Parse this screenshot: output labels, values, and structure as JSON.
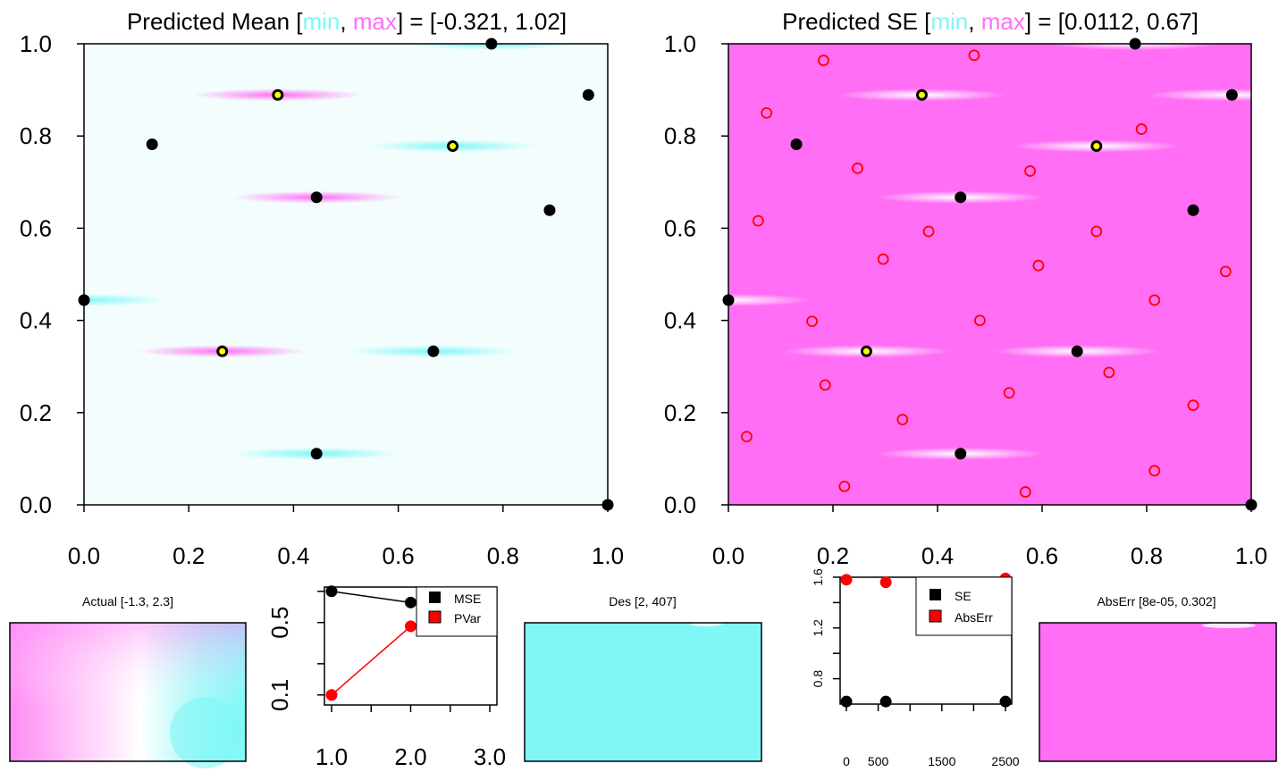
{
  "palette": {
    "cyan": "#7ff7f7",
    "magenta": "#ff6ef5",
    "yellow": "#ffff00",
    "red": "#ff0000",
    "black": "#000000"
  },
  "chart_data": [
    {
      "type": "heatmap",
      "title": {
        "pre": "Predicted Mean [",
        "min": "min",
        "sep": ", ",
        "max": "max",
        "post": "] = [-0.321, 1.02]"
      },
      "xlim": [
        0,
        1
      ],
      "ylim": [
        0,
        1
      ],
      "xticks": [
        "0.0",
        "0.2",
        "0.4",
        "0.6",
        "0.8",
        "1.0"
      ],
      "yticks": [
        "0.0",
        "0.2",
        "0.4",
        "0.6",
        "0.8",
        "1.0"
      ],
      "background_color": "#f3fdfd",
      "design_points": [
        {
          "x": 0.0,
          "y": 0.444,
          "halo": "cyan"
        },
        {
          "x": 0.13,
          "y": 0.782
        },
        {
          "x": 0.264,
          "y": 0.333,
          "yellow": true,
          "halo": "magenta"
        },
        {
          "x": 0.37,
          "y": 0.889,
          "yellow": true,
          "halo": "magenta"
        },
        {
          "x": 0.444,
          "y": 0.667,
          "halo": "magenta"
        },
        {
          "x": 0.444,
          "y": 0.111,
          "halo": "cyan"
        },
        {
          "x": 0.667,
          "y": 0.333,
          "halo": "cyan"
        },
        {
          "x": 0.704,
          "y": 0.778,
          "yellow": true,
          "halo": "cyan"
        },
        {
          "x": 0.778,
          "y": 1.0,
          "halo": "cyan"
        },
        {
          "x": 0.889,
          "y": 0.639
        },
        {
          "x": 0.963,
          "y": 0.889
        },
        {
          "x": 1.0,
          "y": 0.0
        }
      ]
    },
    {
      "type": "heatmap",
      "title": {
        "pre": "Predicted SE [",
        "min": "min",
        "sep": ", ",
        "max": "max",
        "post": "] = [0.0112, 0.67]"
      },
      "xlim": [
        0,
        1
      ],
      "ylim": [
        0,
        1
      ],
      "xticks": [
        "0.0",
        "0.2",
        "0.4",
        "0.6",
        "0.8",
        "1.0"
      ],
      "yticks": [
        "0.0",
        "0.2",
        "0.4",
        "0.6",
        "0.8",
        "1.0"
      ],
      "background_color": "#ff6ef5",
      "design_points": [
        {
          "x": 0.0,
          "y": 0.444,
          "halo": "white"
        },
        {
          "x": 0.13,
          "y": 0.782
        },
        {
          "x": 0.264,
          "y": 0.333,
          "yellow": true,
          "halo": "white"
        },
        {
          "x": 0.37,
          "y": 0.889,
          "yellow": true,
          "halo": "white"
        },
        {
          "x": 0.444,
          "y": 0.667,
          "halo": "white"
        },
        {
          "x": 0.444,
          "y": 0.111,
          "halo": "white"
        },
        {
          "x": 0.667,
          "y": 0.333,
          "halo": "white"
        },
        {
          "x": 0.704,
          "y": 0.778,
          "yellow": true,
          "halo": "white"
        },
        {
          "x": 0.778,
          "y": 1.0,
          "halo": "white"
        },
        {
          "x": 0.889,
          "y": 0.639
        },
        {
          "x": 0.963,
          "y": 0.889,
          "halo": "white"
        },
        {
          "x": 1.0,
          "y": 0.0
        }
      ],
      "candidate_points": [
        {
          "x": 0.182,
          "y": 0.964
        },
        {
          "x": 0.47,
          "y": 0.975
        },
        {
          "x": 0.073,
          "y": 0.85
        },
        {
          "x": 0.79,
          "y": 0.815
        },
        {
          "x": 0.247,
          "y": 0.73
        },
        {
          "x": 0.577,
          "y": 0.724
        },
        {
          "x": 0.057,
          "y": 0.616
        },
        {
          "x": 0.383,
          "y": 0.593
        },
        {
          "x": 0.704,
          "y": 0.593
        },
        {
          "x": 0.296,
          "y": 0.533
        },
        {
          "x": 0.593,
          "y": 0.519
        },
        {
          "x": 0.951,
          "y": 0.506
        },
        {
          "x": 0.815,
          "y": 0.444
        },
        {
          "x": 0.16,
          "y": 0.398
        },
        {
          "x": 0.481,
          "y": 0.4
        },
        {
          "x": 0.728,
          "y": 0.287
        },
        {
          "x": 0.185,
          "y": 0.26
        },
        {
          "x": 0.537,
          "y": 0.243
        },
        {
          "x": 0.889,
          "y": 0.216
        },
        {
          "x": 0.333,
          "y": 0.185
        },
        {
          "x": 0.035,
          "y": 0.148
        },
        {
          "x": 0.815,
          "y": 0.074
        },
        {
          "x": 0.222,
          "y": 0.04
        },
        {
          "x": 0.568,
          "y": 0.028
        }
      ]
    },
    {
      "type": "heatmap",
      "title": "Actual [-1.3, 2.3]",
      "description_colors": [
        "#ff8cf5",
        "#ffffff",
        "#7ff7f7"
      ]
    },
    {
      "type": "line",
      "x": [
        1.0,
        2.0,
        3.0
      ],
      "xticks": [
        "1.0",
        "2.0",
        "3.0"
      ],
      "yticks": [
        "0.1",
        "0.5"
      ],
      "log_y": true,
      "ylim": [
        0.08,
        1.1
      ],
      "series": [
        {
          "name": "MSE",
          "values": [
            1.0,
            0.78,
            0.8
          ],
          "color": "#000000"
        },
        {
          "name": "PVar",
          "values": [
            0.1,
            0.46,
            0.47
          ],
          "color": "#ff0000"
        }
      ],
      "legend_position": "top-right"
    },
    {
      "type": "heatmap",
      "title": "Des [2, 407]",
      "description_colors": [
        "#7ff7f7"
      ]
    },
    {
      "type": "scatter",
      "xlim": [
        0,
        2500
      ],
      "ylim": [
        0.6,
        1.6
      ],
      "xticks": [
        "0",
        "500",
        "1500",
        "2500"
      ],
      "yticks": [
        "0.8",
        "1.2",
        "1.6"
      ],
      "series": [
        {
          "name": "SE",
          "x": [
            0,
            620,
            2500
          ],
          "values": [
            0.62,
            0.62,
            0.62
          ],
          "color": "#000000"
        },
        {
          "name": "AbsErr",
          "x": [
            0,
            620,
            2500
          ],
          "values": [
            1.58,
            1.56,
            1.59
          ],
          "color": "#ff0000"
        }
      ],
      "legend_position": "top-right"
    },
    {
      "type": "heatmap",
      "title": "AbsErr [8e-05, 0.302]",
      "description_colors": [
        "#ff6ef5"
      ]
    }
  ]
}
